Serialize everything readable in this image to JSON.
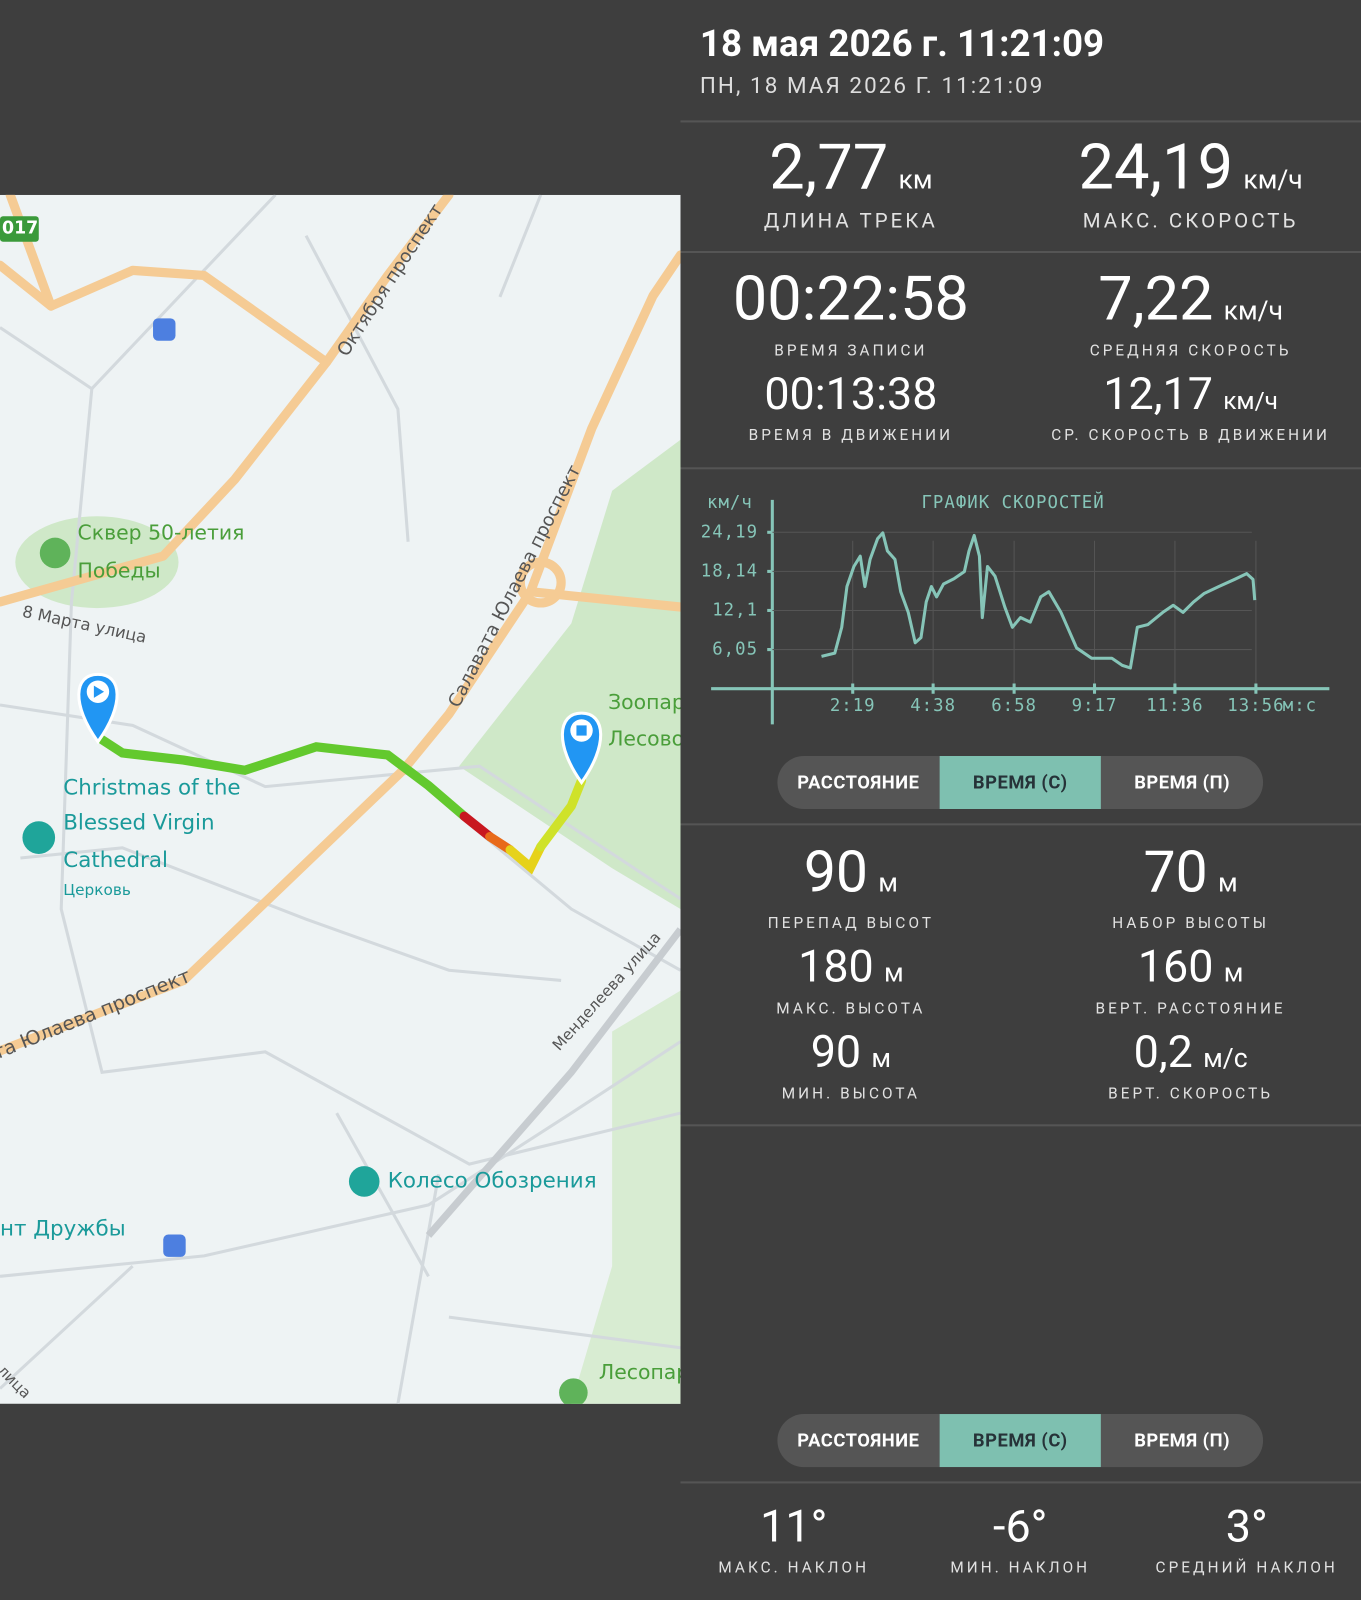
{
  "header": {
    "title": "18 мая 2026 г. 11:21:09",
    "subtitle": "ПН, 18 МАЯ 2026 Г. 11:21:09"
  },
  "summary": [
    {
      "value": "2,77",
      "unit": "км",
      "label": "ДЛИНА ТРЕКА"
    },
    {
      "value": "24,19",
      "unit": "км/ч",
      "label": "МАКС. СКОРОСТЬ"
    }
  ],
  "times": [
    {
      "value": "00:22:58",
      "label": "ВРЕМЯ ЗАПИСИ"
    },
    {
      "value": "7,22",
      "unit": "км/ч",
      "label": "СРЕДНЯЯ СКОРОСТЬ"
    },
    {
      "value": "00:13:38",
      "label": "ВРЕМЯ В ДВИЖЕНИИ"
    },
    {
      "value": "12,17",
      "unit": "км/ч",
      "label": "СР. СКОРОСТЬ В ДВИЖЕНИИ"
    }
  ],
  "chart_data": {
    "type": "line",
    "title": "ГРАФИК СКОРОСТЕЙ",
    "y_unit": "км/ч",
    "x_unit": "м:с",
    "x": [
      85,
      108,
      120,
      129,
      141,
      152,
      160,
      169,
      182,
      191,
      199,
      212,
      222,
      235,
      247,
      257,
      266,
      275,
      284,
      296,
      314,
      332,
      340,
      349,
      358,
      363,
      372,
      385,
      402,
      415,
      429,
      446,
      464,
      478,
      499,
      526,
      552,
      587,
      605,
      619,
      631,
      649,
      675,
      693,
      710,
      728,
      746,
      772,
      799,
      820,
      831,
      834
    ],
    "series": [
      {
        "color": "#86c5b8",
        "values": [
          5.0,
          5.5,
          9.5,
          15.8,
          18.9,
          20.5,
          15.8,
          20.0,
          23.2,
          24.1,
          21.3,
          20.0,
          15.0,
          11.8,
          7.1,
          7.9,
          13.4,
          15.8,
          14.2,
          16.2,
          17.0,
          18.1,
          21.3,
          23.7,
          20.5,
          11.0,
          18.9,
          17.4,
          12.6,
          9.5,
          11.0,
          10.3,
          14.2,
          15.0,
          11.8,
          6.3,
          4.7,
          4.7,
          3.6,
          3.2,
          9.5,
          9.9,
          11.8,
          12.9,
          11.8,
          13.4,
          14.7,
          15.8,
          16.9,
          17.8,
          16.9,
          13.7
        ]
      }
    ],
    "xlim": [
      0,
      963
    ],
    "ylim": [
      0,
      29.2
    ],
    "xticks": [
      {
        "value": 139,
        "label": "2:19"
      },
      {
        "value": 278,
        "label": "4:38"
      },
      {
        "value": 418,
        "label": "6:58"
      },
      {
        "value": 557,
        "label": "9:17"
      },
      {
        "value": 696,
        "label": "11:36"
      },
      {
        "value": 836,
        "label": "13:56"
      }
    ],
    "yticks": [
      {
        "value": 6.05,
        "label": "6,05"
      },
      {
        "value": 12.1,
        "label": "12,1"
      },
      {
        "value": 18.14,
        "label": "18,14"
      },
      {
        "value": 24.19,
        "label": "24,19"
      }
    ],
    "grid": true
  },
  "speed_toggle": {
    "options": [
      "РАССТОЯНИЕ",
      "ВРЕМЯ (С)",
      "ВРЕМЯ (П)"
    ],
    "selected": 1
  },
  "elevation": [
    {
      "value": "90",
      "unit": "м",
      "label": "ПЕРЕПАД ВЫСОТ"
    },
    {
      "value": "70",
      "unit": "м",
      "label": "НАБОР ВЫСОТЫ"
    },
    {
      "value": "180",
      "unit": "м",
      "label": "МАКС. ВЫСОТА"
    },
    {
      "value": "160",
      "unit": "м",
      "label": "ВЕРТ. РАССТОЯНИЕ"
    },
    {
      "value": "90",
      "unit": "м",
      "label": "МИН. ВЫСОТА"
    },
    {
      "value": "0,2",
      "unit": "м/с",
      "label": "ВЕРТ. СКОРОСТЬ"
    }
  ],
  "slope_toggle": {
    "options": [
      "РАССТОЯНИЕ",
      "ВРЕМЯ (С)",
      "ВРЕМЯ (П)"
    ],
    "selected": 1
  },
  "slopes": [
    {
      "value": "11°",
      "label": "МАКС. НАКЛОН"
    },
    {
      "value": "-6°",
      "label": "МИН. НАКЛОН"
    },
    {
      "value": "3°",
      "label": "СРЕДНИЙ НАКЛОН"
    }
  ],
  "map": {
    "labels": [
      "017",
      "Октября проспект",
      "Сквер 50-летия",
      "Победы",
      "8 Марта улица",
      "Салавата Юлаева проспект",
      "Зоопар",
      "Лесово",
      "Christmas of the",
      "Blessed Virgin",
      "Cathedral",
      "Церковь",
      "та Юлаева проспект",
      "Менделеева улица",
      "Колесо Обозрения",
      "нт Дружбы",
      "Лесопар",
      "лица"
    ]
  }
}
